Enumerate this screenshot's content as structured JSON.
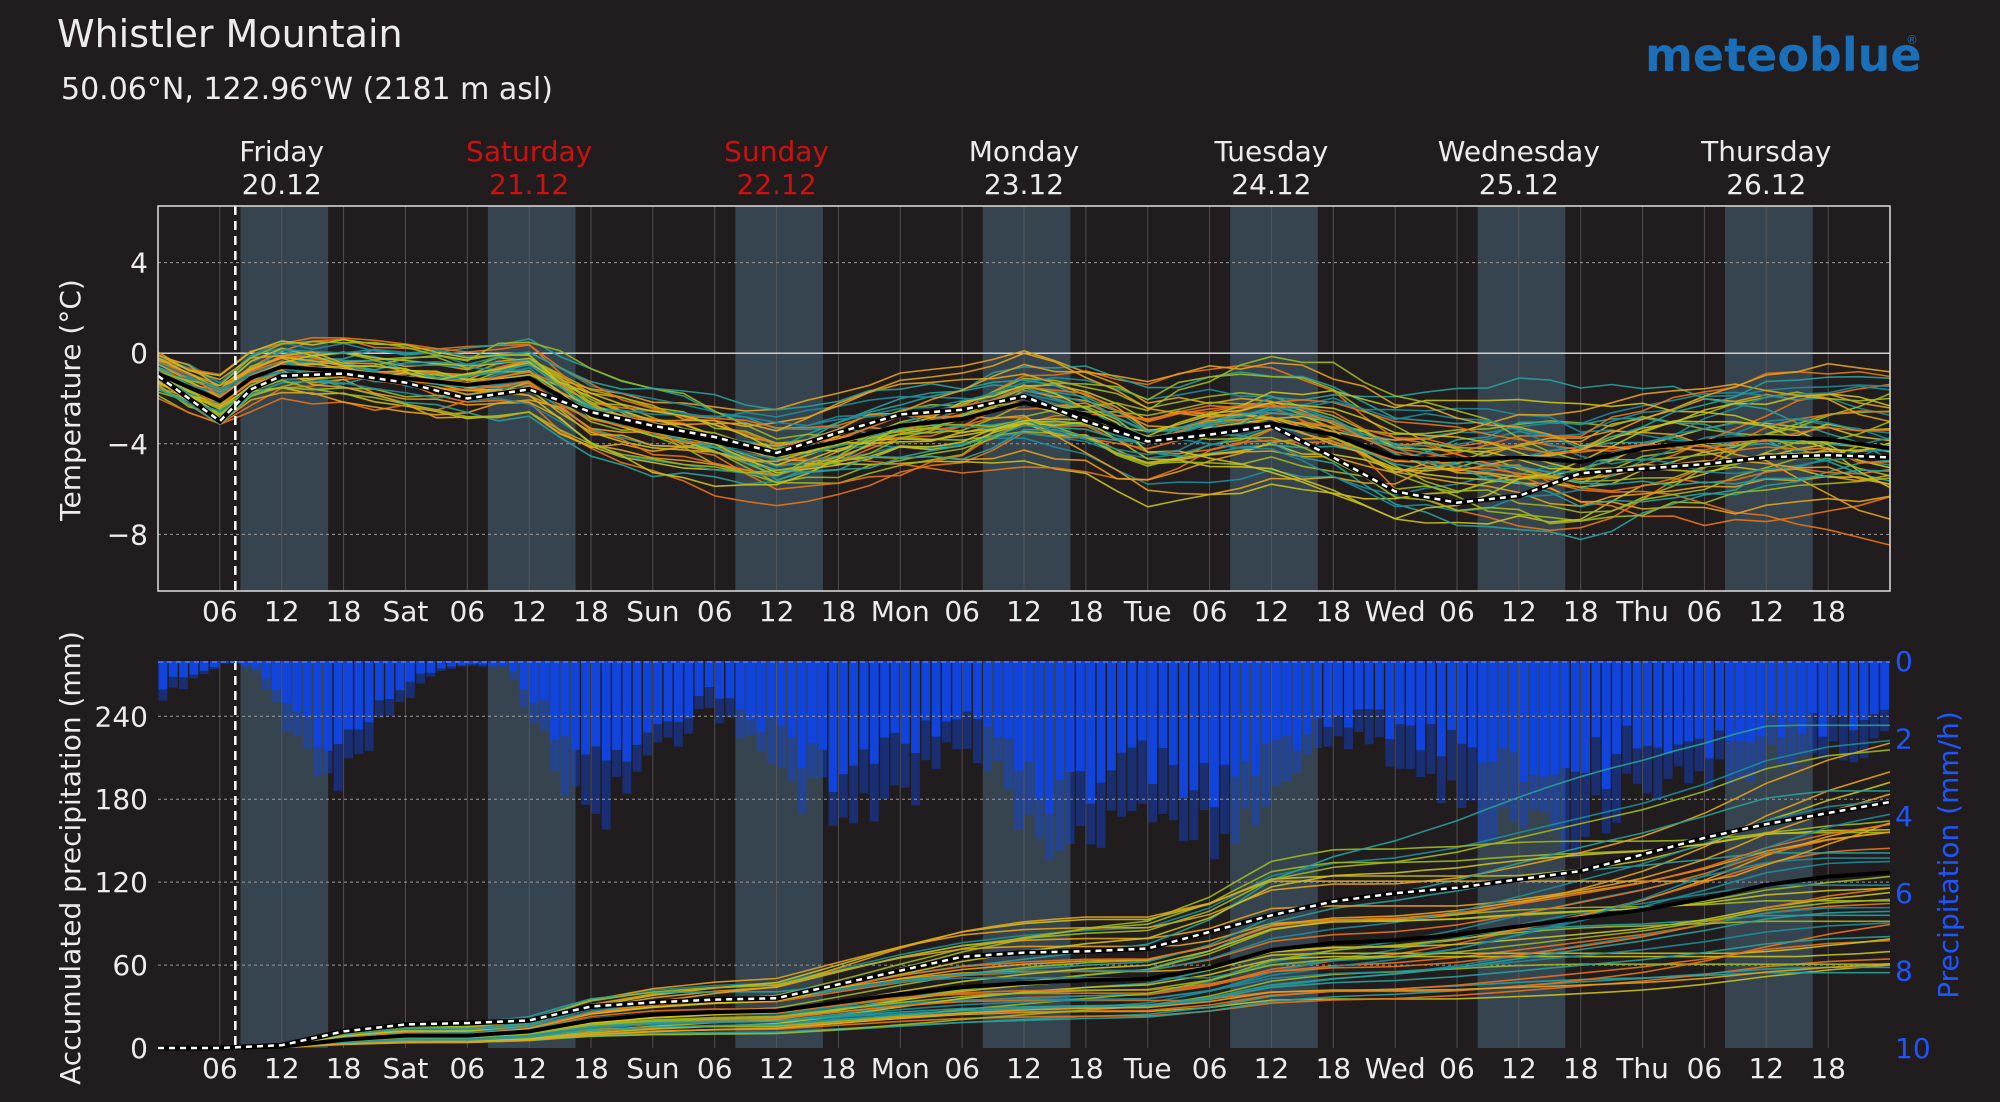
{
  "header": {
    "title": "Whistler Mountain",
    "subtitle": "50.06°N, 122.96°W (2181 m asl)",
    "brand": "meteoblue"
  },
  "days": [
    {
      "name": "Friday",
      "date": "20.12",
      "weekend": false
    },
    {
      "name": "Saturday",
      "date": "21.12",
      "weekend": true
    },
    {
      "name": "Sunday",
      "date": "22.12",
      "weekend": true
    },
    {
      "name": "Monday",
      "date": "23.12",
      "weekend": false
    },
    {
      "name": "Tuesday",
      "date": "24.12",
      "weekend": false
    },
    {
      "name": "Wednesday",
      "date": "25.12",
      "weekend": false
    },
    {
      "name": "Thursday",
      "date": "26.12",
      "weekend": false
    }
  ],
  "x_tick_labels": [
    "06",
    "12",
    "18",
    "Sat",
    "06",
    "12",
    "18",
    "Sun",
    "06",
    "12",
    "18",
    "Mon",
    "06",
    "12",
    "18",
    "Tue",
    "06",
    "12",
    "18",
    "Wed",
    "06",
    "12",
    "18",
    "Thu",
    "06",
    "12",
    "18"
  ],
  "colors": {
    "background": "#211d1e",
    "daylight_band": "#36444f",
    "weekend_red": "#cc1111",
    "brand_blue": "#1a6fb8",
    "precip_blue": "#1144dd",
    "precip_axis_blue": "#1f55ff",
    "member_colors": [
      "#e7731a",
      "#e3a21a",
      "#c9c21c",
      "#9fb81e",
      "#29a09a",
      "#1e8c9a"
    ],
    "median_line": "#000000",
    "mean_line": "#ffffff"
  },
  "chart_data": [
    {
      "type": "line",
      "title": "",
      "ylabel": "Temperature (°C)",
      "x_unit": "hours since Fri 20.12 00:00",
      "xlim": [
        0,
        168
      ],
      "ylim": [
        -10.5,
        6.5
      ],
      "yticks": [
        4,
        0,
        -4,
        -8
      ],
      "current_time_hour": 7.5,
      "daylight_hours": [
        [
          8,
          16.5
        ]
      ],
      "ensemble_members": 51,
      "series": [
        {
          "label": "median",
          "x": [
            0,
            6,
            9,
            12,
            18,
            24,
            30,
            36,
            42,
            48,
            54,
            60,
            66,
            72,
            78,
            84,
            90,
            96,
            102,
            108,
            114,
            120,
            126,
            132,
            138,
            144,
            150,
            156,
            162,
            168
          ],
          "values": [
            -0.9,
            -2.1,
            -1.1,
            -0.6,
            -0.8,
            -1.1,
            -1.4,
            -1.1,
            -2.7,
            -3.4,
            -3.9,
            -4.5,
            -3.9,
            -3.2,
            -2.9,
            -2.2,
            -2.7,
            -3.8,
            -3.4,
            -3.1,
            -3.6,
            -4.6,
            -4.7,
            -4.6,
            -4.8,
            -4.2,
            -3.9,
            -3.7,
            -3.8,
            -4.2
          ]
        },
        {
          "label": "mean",
          "x": [
            0,
            6,
            9,
            12,
            18,
            24,
            30,
            36,
            42,
            48,
            54,
            60,
            66,
            72,
            78,
            84,
            90,
            96,
            102,
            108,
            114,
            120,
            126,
            132,
            138,
            144,
            150,
            156,
            162,
            168
          ],
          "values": [
            -1.0,
            -3.0,
            -1.6,
            -1.0,
            -0.9,
            -1.3,
            -2.0,
            -1.6,
            -2.6,
            -3.2,
            -3.7,
            -4.4,
            -3.5,
            -2.7,
            -2.5,
            -1.9,
            -3.0,
            -3.9,
            -3.6,
            -3.2,
            -4.6,
            -6.1,
            -6.6,
            -6.3,
            -5.3,
            -5.1,
            -4.9,
            -4.6,
            -4.5,
            -4.6
          ]
        }
      ]
    },
    {
      "type": "bar",
      "title": "",
      "ylabel": "Accumulated precipitation (mm)",
      "y2label": "Precipitation (mm/h)",
      "x_unit": "hours since Fri 20.12 00:00",
      "xlim": [
        0,
        168
      ],
      "ylim": [
        0,
        280
      ],
      "yticks": [
        0,
        60,
        120,
        180,
        240
      ],
      "y2lim": [
        0,
        10
      ],
      "y2ticks": [
        0,
        2,
        4,
        6,
        8,
        10
      ],
      "y2_inverted": true,
      "hourly_rate_profile": {
        "x": [
          0,
          3,
          7,
          10,
          14,
          18,
          22,
          27,
          30,
          34,
          38,
          42,
          46,
          50,
          53,
          58,
          62,
          66,
          70,
          74,
          78,
          82,
          86,
          90,
          94,
          98,
          102,
          106,
          110,
          114,
          118,
          122,
          126,
          130,
          134,
          138,
          142,
          146,
          150,
          154,
          160,
          168
        ],
        "values": [
          1.0,
          0.6,
          0.0,
          0.4,
          2.6,
          3.3,
          1.6,
          0.3,
          0.1,
          0.2,
          2.5,
          4.6,
          3.0,
          2.1,
          1.2,
          2.2,
          3.6,
          3.8,
          4.2,
          3.2,
          2.0,
          3.4,
          4.6,
          4.6,
          4.1,
          4.2,
          4.6,
          4.2,
          3.0,
          2.2,
          2.0,
          3.0,
          3.8,
          4.6,
          4.5,
          4.6,
          3.6,
          3.2,
          3.0,
          2.8,
          2.5,
          2.2
        ]
      },
      "series": [
        {
          "label": "median",
          "x": [
            0,
            6,
            12,
            18,
            24,
            30,
            36,
            42,
            48,
            54,
            60,
            66,
            72,
            78,
            84,
            90,
            96,
            102,
            108,
            114,
            120,
            126,
            132,
            138,
            144,
            150,
            156,
            162,
            168
          ],
          "values": [
            0,
            0,
            1,
            6,
            9,
            9,
            12,
            20,
            24,
            26,
            27,
            33,
            39,
            44,
            47,
            49,
            50,
            58,
            71,
            76,
            78,
            82,
            88,
            94,
            100,
            108,
            118,
            124,
            127
          ]
        },
        {
          "label": "mean",
          "x": [
            0,
            6,
            12,
            18,
            24,
            30,
            36,
            42,
            48,
            54,
            60,
            66,
            72,
            78,
            84,
            90,
            96,
            102,
            108,
            114,
            120,
            126,
            132,
            138,
            144,
            150,
            156,
            162,
            168
          ],
          "values": [
            0,
            0,
            2,
            12,
            17,
            18,
            20,
            30,
            33,
            35,
            36,
            46,
            56,
            66,
            69,
            70,
            72,
            84,
            96,
            106,
            112,
            116,
            122,
            128,
            140,
            152,
            162,
            170,
            178
          ]
        }
      ]
    }
  ]
}
